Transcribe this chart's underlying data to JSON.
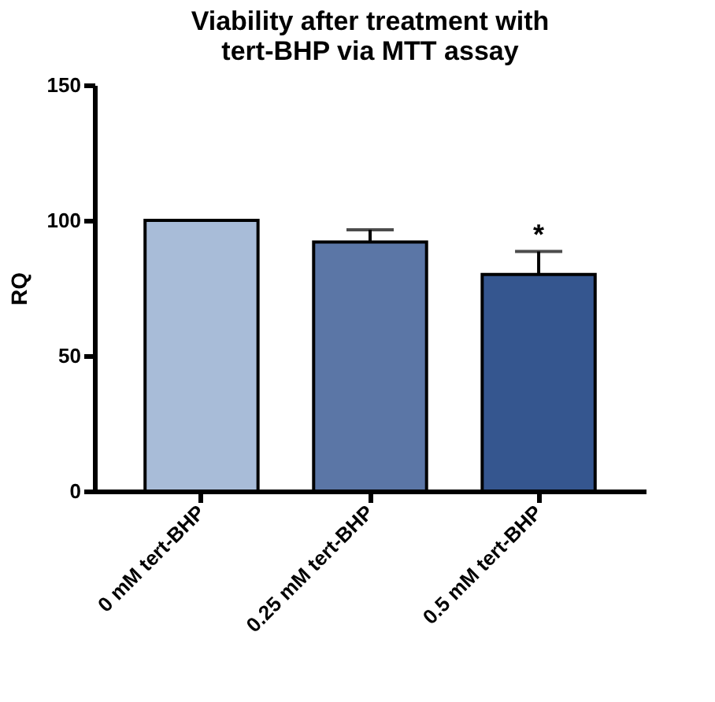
{
  "chart_data": {
    "type": "bar",
    "title": [
      "Viability after treatment with",
      "tert-BHP via MTT assay"
    ],
    "ylabel": "RQ",
    "categories": [
      "0 mM tert-BHP",
      "0.25 mM tert-BHP",
      "0.5 mM tert-BHP"
    ],
    "values": [
      100,
      92,
      80
    ],
    "colors": [
      "#a8bcd8",
      "#5b76a6",
      "#35568f"
    ],
    "errors": [
      null,
      4.5,
      8.5
    ],
    "annotations": [
      "*"
    ],
    "ylim": [
      0,
      150
    ],
    "yticks": [
      0,
      50,
      100,
      150
    ],
    "grid": false
  }
}
